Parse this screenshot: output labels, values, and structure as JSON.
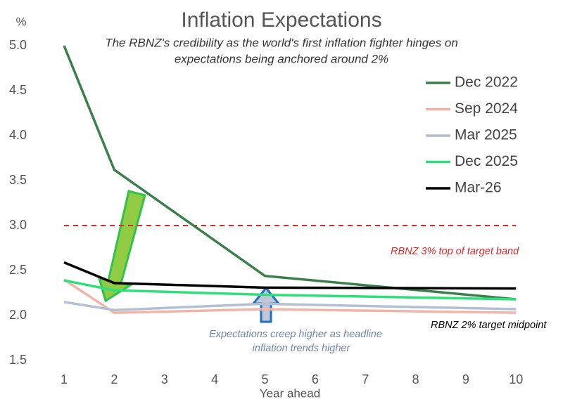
{
  "chart_data": {
    "type": "line",
    "title": "Inflation Expectations",
    "subtitle": [
      "The RBNZ's credibility as the world's first inflation fighter hinges on",
      "expectations being anchored around 2%"
    ],
    "y_unit": "%",
    "x_label": "Year ahead",
    "x": [
      1,
      2,
      5,
      10
    ],
    "xlim": [
      0.5,
      10.5
    ],
    "xticks": [
      1,
      2,
      3,
      4,
      5,
      6,
      7,
      8,
      9,
      10
    ],
    "ylim": [
      1.5,
      5.0
    ],
    "yticks": [
      1.5,
      {
        "value": 2,
        "label": "2.0"
      },
      2.5,
      {
        "value": 3,
        "label": "3.0"
      },
      3.5,
      {
        "value": 4,
        "label": "4.0"
      },
      4.5,
      {
        "value": 5,
        "label": "5.0"
      }
    ],
    "series": [
      {
        "name": "Dec 2022",
        "color": "#3b7f4c",
        "values": [
          5.0,
          3.62,
          2.44,
          2.18
        ]
      },
      {
        "name": "Sep 2024",
        "color": "#f2b4a6",
        "values": [
          2.4,
          2.03,
          2.07,
          2.03
        ]
      },
      {
        "name": "Mar 2025",
        "color": "#b3bfd3",
        "values": [
          2.15,
          2.06,
          2.13,
          2.07
        ]
      },
      {
        "name": "Dec 2025",
        "color": "#2fe07a",
        "values": [
          2.39,
          2.28,
          2.23,
          2.18
        ]
      },
      {
        "name": "Mar-26",
        "color": "#000000",
        "values": [
          2.59,
          2.36,
          2.31,
          2.3
        ]
      }
    ],
    "reference_line": {
      "value": 3,
      "color": "#e02828"
    },
    "annotations": [
      {
        "text": [
          "RBNZ 3% top of target band"
        ],
        "color": "#e02828"
      },
      {
        "text": [
          "RBNZ 2% target midpoint"
        ],
        "color": "#000000"
      },
      {
        "text": [
          "Expectations creep higher as headline",
          "inflation trends higher"
        ],
        "color": "#6f86a8"
      }
    ],
    "legend": "top-right"
  }
}
